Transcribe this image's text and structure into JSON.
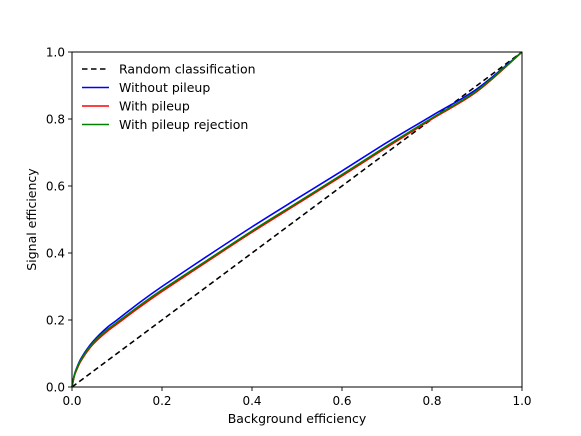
{
  "chart_data": {
    "type": "line",
    "title": "",
    "xlabel": "Background efficiency",
    "ylabel": "Signal efficiency",
    "xlim": [
      0.0,
      1.0
    ],
    "ylim": [
      0.0,
      1.0
    ],
    "xticks": [
      0.0,
      0.2,
      0.4,
      0.6,
      0.8,
      1.0
    ],
    "yticks": [
      0.0,
      0.2,
      0.4,
      0.6,
      0.8,
      1.0
    ],
    "tick_labels": [
      "0.0",
      "0.2",
      "0.4",
      "0.6",
      "0.8",
      "1.0"
    ],
    "grid": false,
    "legend_position": "top-left",
    "series": [
      {
        "name": "Random classification",
        "color": "#000000",
        "style": "dashed",
        "x": [
          0.0,
          1.0
        ],
        "y": [
          0.0,
          1.0
        ]
      },
      {
        "name": "Without pileup",
        "color": "#0000ff",
        "style": "solid",
        "x": [
          0.0,
          0.005,
          0.01,
          0.02,
          0.04,
          0.06,
          0.08,
          0.1,
          0.15,
          0.2,
          0.3,
          0.4,
          0.5,
          0.6,
          0.7,
          0.8,
          0.9,
          1.0
        ],
        "y": [
          0.0,
          0.035,
          0.055,
          0.085,
          0.125,
          0.155,
          0.18,
          0.2,
          0.252,
          0.3,
          0.39,
          0.478,
          0.562,
          0.645,
          0.73,
          0.81,
          0.89,
          1.0
        ]
      },
      {
        "name": "With pileup",
        "color": "#ff0000",
        "style": "solid",
        "x": [
          0.0,
          0.005,
          0.01,
          0.02,
          0.04,
          0.06,
          0.08,
          0.1,
          0.15,
          0.2,
          0.3,
          0.4,
          0.5,
          0.6,
          0.7,
          0.8,
          0.9,
          1.0
        ],
        "y": [
          0.0,
          0.032,
          0.05,
          0.078,
          0.117,
          0.145,
          0.168,
          0.188,
          0.238,
          0.285,
          0.374,
          0.462,
          0.546,
          0.63,
          0.716,
          0.8,
          0.882,
          1.0
        ]
      },
      {
        "name": "With pileup rejection",
        "color": "#008000",
        "style": "solid",
        "x": [
          0.0,
          0.005,
          0.01,
          0.02,
          0.04,
          0.06,
          0.08,
          0.1,
          0.15,
          0.2,
          0.3,
          0.4,
          0.5,
          0.6,
          0.7,
          0.8,
          0.9,
          1.0
        ],
        "y": [
          0.0,
          0.034,
          0.053,
          0.082,
          0.121,
          0.15,
          0.173,
          0.193,
          0.243,
          0.29,
          0.378,
          0.466,
          0.55,
          0.634,
          0.72,
          0.803,
          0.885,
          1.0
        ]
      }
    ]
  }
}
